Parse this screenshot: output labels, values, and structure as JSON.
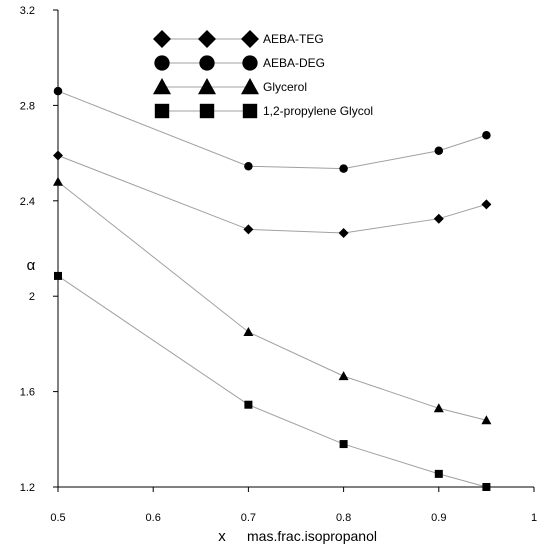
{
  "chart_data": {
    "type": "line",
    "xlabel_symbol": "x",
    "xlabel": "mas.frac.isopropanol",
    "ylabel": "α",
    "xlim": [
      0.5,
      1.0
    ],
    "ylim": [
      1.2,
      3.2
    ],
    "x_ticks": [
      "0.5",
      "0.6",
      "0.7",
      "0.8",
      "0.9",
      "1"
    ],
    "y_ticks": [
      "1.2",
      "1.6",
      "2",
      "2.4",
      "2.8",
      "3.2"
    ],
    "grid": false,
    "legend_position": "top-left",
    "series": [
      {
        "name": "AEBA-TEG",
        "marker": "diamond",
        "x": [
          0.5,
          0.7,
          0.8,
          0.9,
          0.95
        ],
        "y": [
          2.59,
          2.28,
          2.265,
          2.325,
          2.385
        ]
      },
      {
        "name": "AEBA-DEG",
        "marker": "circle",
        "x": [
          0.5,
          0.7,
          0.8,
          0.9,
          0.95
        ],
        "y": [
          2.86,
          2.545,
          2.535,
          2.61,
          2.675
        ]
      },
      {
        "name": "Glycerol",
        "marker": "triangle",
        "x": [
          0.5,
          0.7,
          0.8,
          0.9,
          0.95
        ],
        "y": [
          2.48,
          1.85,
          1.665,
          1.53,
          1.48
        ]
      },
      {
        "name": "1,2-propylene Glycol",
        "marker": "square",
        "x": [
          0.5,
          0.7,
          0.8,
          0.9,
          0.95
        ],
        "y": [
          2.085,
          1.545,
          1.38,
          1.255,
          1.2
        ]
      }
    ]
  }
}
